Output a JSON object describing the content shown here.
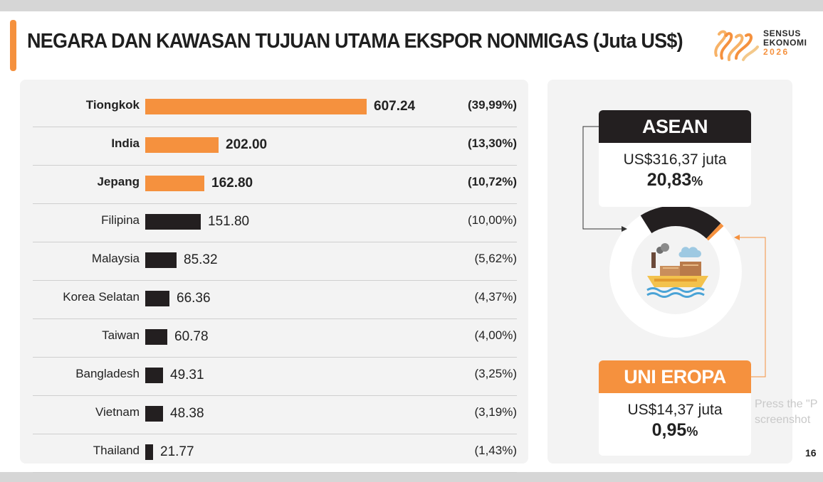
{
  "title": "NEGARA DAN KAWASAN TUJUAN UTAMA EKSPOR NONMIGAS (Juta US$)",
  "logo": {
    "line1": "SENSUS",
    "line2": "EKONOMI",
    "line3": "2026"
  },
  "colors": {
    "accent": "#f5913e",
    "dark": "#231f20"
  },
  "chart_data": {
    "type": "bar",
    "orientation": "horizontal",
    "title": "NEGARA DAN KAWASAN TUJUAN UTAMA EKSPOR NONMIGAS (Juta US$)",
    "categories": [
      "Tiongkok",
      "India",
      "Jepang",
      "Filipina",
      "Malaysia",
      "Korea Selatan",
      "Taiwan",
      "Bangladesh",
      "Vietnam",
      "Thailand"
    ],
    "values": [
      607.24,
      202.0,
      162.8,
      151.8,
      85.32,
      66.36,
      60.78,
      49.31,
      48.38,
      21.77
    ],
    "value_labels": [
      "607.24",
      "202.00",
      "162.80",
      "151.80",
      "85.32",
      "66.36",
      "60.78",
      "49.31",
      "48.38",
      "21.77"
    ],
    "shares": [
      "(39,99%)",
      "(13,30%)",
      "(10,72%)",
      "(10,00%)",
      "(5,62%)",
      "(4,37%)",
      "(4,00%)",
      "(3,25%)",
      "(3,19%)",
      "(1,43%)"
    ],
    "highlighted": [
      true,
      true,
      true,
      false,
      false,
      false,
      false,
      false,
      false,
      false
    ],
    "xlim": [
      0,
      607.24
    ]
  },
  "regions": {
    "asean": {
      "label": "ASEAN",
      "amount": "US$316,37 juta",
      "pct_number": "20,83",
      "pct_sign": "%",
      "share": 20.83
    },
    "eu": {
      "label": "UNI EROPA",
      "amount": "US$14,37 juta",
      "pct_number": "0,95",
      "pct_sign": "%",
      "share": 0.95
    }
  },
  "overlay_text": {
    "line1": "Press the \"P",
    "line2": "screenshot"
  },
  "page_number": "16"
}
